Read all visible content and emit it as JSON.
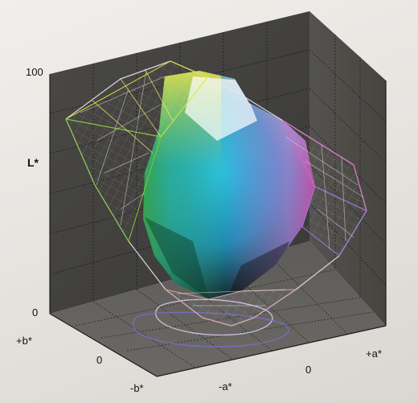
{
  "diagram": {
    "axes": {
      "l_max": "100",
      "l_min": "0",
      "l_name": "L*",
      "b_pos": "+b*",
      "b_zero": "0",
      "b_neg": "-b*",
      "a_neg": "-a*",
      "a_zero": "0",
      "a_pos": "+a*"
    }
  }
}
